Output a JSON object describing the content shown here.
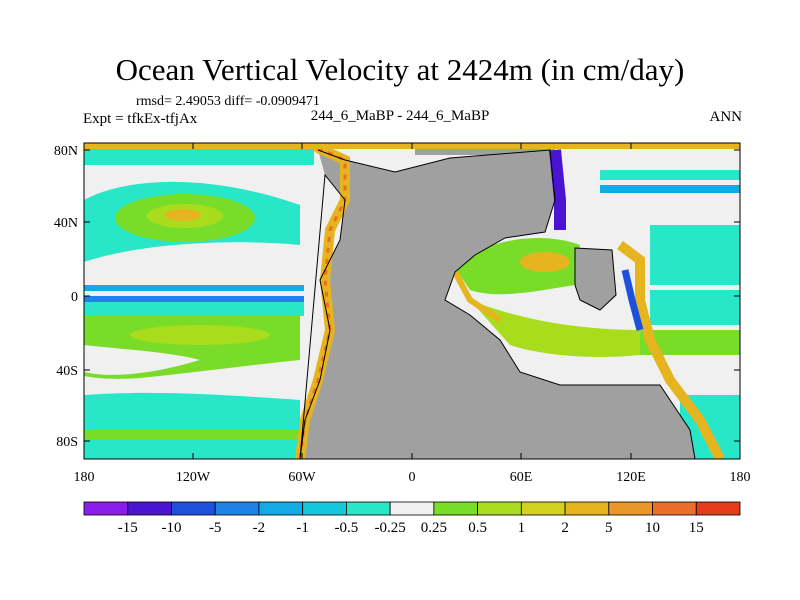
{
  "title": "Ocean Vertical Velocity at 2424m (in cm/day)",
  "stats_line": "rmsd= 2.49053 diff= -0.0909471",
  "expt_line": "Expt = tfkEx-tfjAx",
  "center_label": "244_6_MaBP - 244_6_MaBP",
  "season_label": "ANN",
  "map": {
    "land_color": "#a0a0a0",
    "lat_ticks": [
      "80N",
      "40N",
      "0",
      "40S",
      "80S"
    ],
    "lon_ticks": [
      "180",
      "120W",
      "60W",
      "0",
      "60E",
      "120E",
      "180"
    ]
  },
  "colorbar": {
    "colors": [
      "#8c1eeb",
      "#4b14d2",
      "#1e50dc",
      "#1e82e6",
      "#14aae6",
      "#14c8dc",
      "#28e6c8",
      "#f0f0f0",
      "#78dc28",
      "#aadc1e",
      "#d2d21e",
      "#e6b41e",
      "#eb9628",
      "#eb6e28",
      "#e63c1e"
    ],
    "labels": [
      "-15",
      "-10",
      "-5",
      "-2",
      "-1",
      "-0.5",
      "-0.25",
      "0.25",
      "0.5",
      "1",
      "2",
      "5",
      "10",
      "15"
    ]
  }
}
